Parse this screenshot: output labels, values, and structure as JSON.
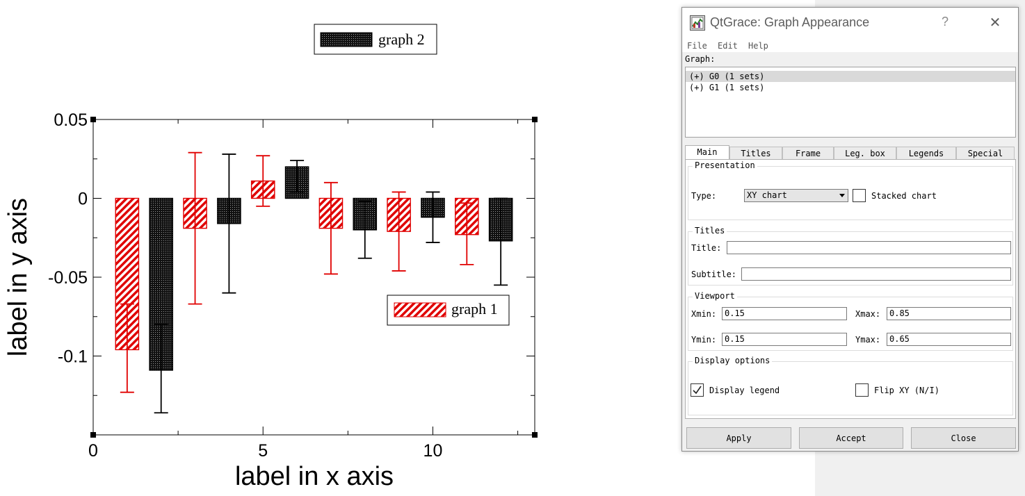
{
  "chart_data": {
    "type": "bar",
    "xlabel": "label in x axis",
    "ylabel": "label in y axis",
    "xlim": [
      0,
      13
    ],
    "ylim": [
      -0.15,
      0.05
    ],
    "xticks": [
      0,
      5,
      10
    ],
    "yticks": [
      0.05,
      0,
      -0.05,
      -0.1
    ],
    "xtick_labels": [
      "0",
      "5",
      "10"
    ],
    "ytick_labels": [
      "0.05",
      "0",
      "-0.05",
      "-0.1"
    ],
    "grid": false,
    "series": [
      {
        "name": "graph 1",
        "color": "#e00000",
        "pattern": "diagonal-hatch",
        "x": [
          1,
          3,
          5,
          7,
          9,
          11
        ],
        "values": [
          -0.096,
          -0.019,
          0.011,
          -0.019,
          -0.021,
          -0.023
        ],
        "err_low": [
          -0.123,
          -0.067,
          -0.005,
          -0.048,
          -0.046,
          -0.042
        ],
        "err_high": [
          -0.067,
          0.029,
          0.027,
          0.01,
          0.004,
          -0.003
        ]
      },
      {
        "name": "graph 2",
        "color": "#000000",
        "pattern": "dotted",
        "x": [
          2,
          4,
          6,
          8,
          10,
          12
        ],
        "values": [
          -0.109,
          -0.016,
          0.02,
          -0.02,
          -0.012,
          -0.027
        ],
        "err_low": [
          -0.136,
          -0.06,
          0.004,
          -0.038,
          -0.028,
          -0.055
        ],
        "err_high": [
          -0.08,
          0.028,
          0.024,
          -0.002,
          0.004,
          0.0
        ]
      }
    ],
    "legends": [
      {
        "label": "graph 2",
        "placement": "top-center-outside"
      },
      {
        "label": "graph 1",
        "placement": "right-middle"
      }
    ]
  },
  "dialog": {
    "title": "QtGrace: Graph Appearance",
    "help_glyph": "?",
    "close_glyph": "✕",
    "menu": [
      "File",
      "Edit",
      "Help"
    ],
    "graph_label": "Graph:",
    "graphs": [
      "(+) G0 (1 sets)",
      "(+) G1 (1 sets)"
    ],
    "tabs": [
      "Main",
      "Titles",
      "Frame",
      "Leg. box",
      "Legends",
      "Special"
    ],
    "presentation": {
      "title": "Presentation",
      "type_label": "Type:",
      "type_value": "XY chart",
      "stacked_label": "Stacked chart",
      "stacked_checked": false
    },
    "titles": {
      "title": "Titles",
      "title_label": "Title:",
      "title_value": "",
      "subtitle_label": "Subtitle:",
      "subtitle_value": ""
    },
    "viewport": {
      "title": "Viewport",
      "xmin_label": "Xmin:",
      "xmin": "0.15",
      "xmax_label": "Xmax:",
      "xmax": "0.85",
      "ymin_label": "Ymin:",
      "ymin": "0.15",
      "ymax_label": "Ymax:",
      "ymax": "0.65"
    },
    "display_options": {
      "title": "Display options",
      "display_legend_label": "Display legend",
      "display_legend_checked": true,
      "flip_xy_label": "Flip XY (N/I)",
      "flip_xy_checked": false
    },
    "buttons": {
      "apply": "Apply",
      "accept": "Accept",
      "close": "Close"
    }
  }
}
